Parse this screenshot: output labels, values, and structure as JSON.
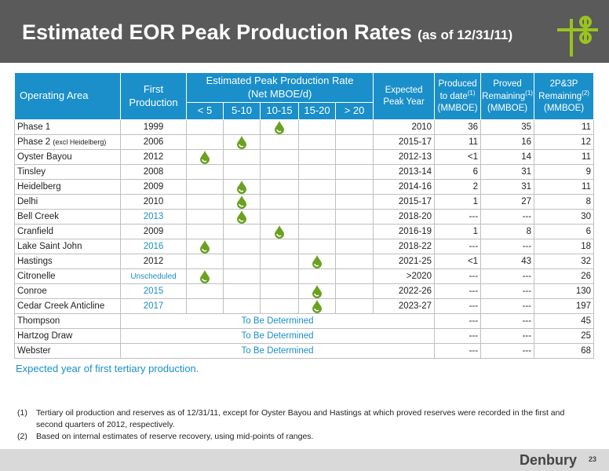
{
  "header": {
    "title": "Estimated EOR Peak Production Rates",
    "subtitle": "(as of 12/31/11)"
  },
  "table": {
    "headers": {
      "area": "Operating Area",
      "first_production": "First Production",
      "rate": "Estimated Peak Production Rate",
      "rate_unit": "(Net MBOE/d)",
      "rate_columns": [
        "< 5",
        "5-10",
        "10-15",
        "15-20",
        "> 20"
      ],
      "peak_year": "Expected Peak Year",
      "produced": "Produced to date",
      "produced_note": "(1)",
      "produced_unit": "(MMBOE)",
      "proved": "Proved Remaining",
      "proved_note": "(1)",
      "proved_unit": "(MMBOE)",
      "p2p3": "2P&3P Remaining",
      "p2p3_note": "(2)",
      "p2p3_unit": "(MMBOE)"
    },
    "rows": [
      {
        "name": "Phase 1",
        "first_production": "1999",
        "rate": "10-15",
        "peak_year": "2010",
        "produced": "36",
        "proved": "35",
        "p2p3": "11"
      },
      {
        "name": "Phase 2",
        "name_note": "(excl Heidelberg)",
        "first_production": "2006",
        "rate": "5-10",
        "peak_year": "2015-17",
        "produced": "11",
        "proved": "16",
        "p2p3": "12"
      },
      {
        "name": "Oyster Bayou",
        "first_production": "2012",
        "rate": "< 5",
        "peak_year": "2012-13",
        "produced": "<1",
        "proved": "14",
        "p2p3": "11"
      },
      {
        "name": "Tinsley",
        "first_production": "2008",
        "peak_year": "2013-14",
        "produced": "6",
        "proved": "31",
        "p2p3": "9"
      },
      {
        "name": "Heidelberg",
        "first_production": "2009",
        "rate": "5-10",
        "peak_year": "2014-16",
        "produced": "2",
        "proved": "31",
        "p2p3": "11"
      },
      {
        "name": "Delhi",
        "first_production": "2010",
        "rate": "5-10",
        "peak_year": "2015-17",
        "produced": "1",
        "proved": "27",
        "p2p3": "8"
      },
      {
        "name": "Bell Creek",
        "first_production": "2013",
        "first_production_color": "#1a8fc9",
        "rate": "5-10",
        "peak_year": "2018-20",
        "produced": "---",
        "proved": "---",
        "p2p3": "30"
      },
      {
        "name": "Cranfield",
        "first_production": "2009",
        "rate": "10-15",
        "peak_year": "2016-19",
        "produced": "1",
        "proved": "8",
        "p2p3": "6"
      },
      {
        "name": "Lake Saint John",
        "first_production": "2016",
        "first_production_color": "#1a8fc9",
        "rate": "< 5",
        "peak_year": "2018-22",
        "produced": "---",
        "proved": "---",
        "p2p3": "18"
      },
      {
        "name": "Hastings",
        "first_production": "2012",
        "rate": "15-20",
        "peak_year": "2021-25",
        "produced": "<1",
        "proved": "43",
        "p2p3": "32"
      },
      {
        "name": "Citronelle",
        "first_production": "Unscheduled",
        "first_production_color": "#1a8fc9",
        "rate": "< 5",
        "peak_year": ">2020",
        "produced": "---",
        "proved": "---",
        "p2p3": "26"
      },
      {
        "name": "Conroe",
        "first_production": "2015",
        "first_production_color": "#1a8fc9",
        "rate": "15-20",
        "peak_year": "2022-26",
        "produced": "---",
        "proved": "---",
        "p2p3": "130"
      },
      {
        "name": "Cedar Creek Anticline",
        "first_production": "2017",
        "first_production_color": "#1a8fc9",
        "rate": "15-20",
        "peak_year": "2023-27",
        "produced": "---",
        "proved": "---",
        "p2p3": "197"
      },
      {
        "name": "Thompson",
        "status": "To Be Determined",
        "produced": "---",
        "proved": "---",
        "p2p3": "45"
      },
      {
        "name": "Hartzog Draw",
        "status": "To Be Determined",
        "produced": "---",
        "proved": "---",
        "p2p3": "25"
      },
      {
        "name": "Webster",
        "status": "To Be Determined",
        "produced": "---",
        "proved": "---",
        "p2p3": "68"
      }
    ]
  },
  "legend": "Expected year of first tertiary production.",
  "footnotes": [
    {
      "marker": "(1)",
      "text": "Tertiary oil production and reserves as of 12/31/11, except for Oyster Bayou and Hastings at which proved reserves were recorded in the first and second quarters of 2012, respectively."
    },
    {
      "marker": "(2)",
      "text": "Based on internal estimates of reserve recovery, using mid-points of ranges."
    }
  ],
  "footer": {
    "logo": "Denbury",
    "page": "23"
  }
}
